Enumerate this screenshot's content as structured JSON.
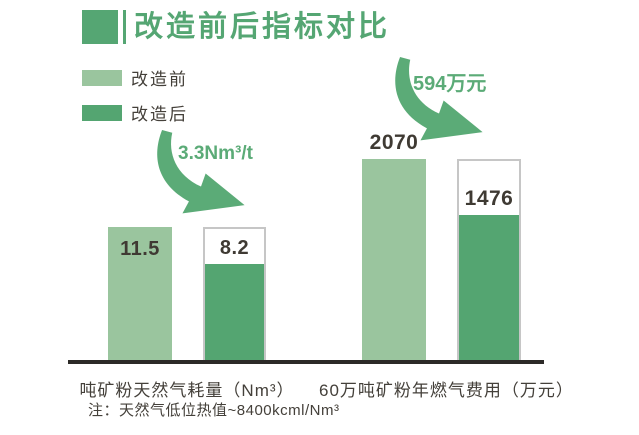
{
  "chart_data": {
    "type": "bar",
    "title": "改造前后指标对比",
    "legend_position": "top-left",
    "series": [
      {
        "name": "改造前",
        "color": "#9AC59E"
      },
      {
        "name": "改造后",
        "color": "#54A571"
      }
    ],
    "groups": [
      {
        "category": "吨矿粉天然气耗量（Nm³）",
        "before": 11.5,
        "after": 8.2,
        "reduction_annotation": "3.3Nm³/t"
      },
      {
        "category": "60万吨矿粉年燃气费用（万元）",
        "before": 2070,
        "after": 1476,
        "reduction_annotation": "594万元"
      }
    ],
    "note": "注：天然气低位热值~8400kcml/Nm³",
    "colors": {
      "title_accent": "#55A673",
      "arrow": "#5BAB77",
      "text": "#44403A",
      "axis": "#2C2A27"
    }
  }
}
